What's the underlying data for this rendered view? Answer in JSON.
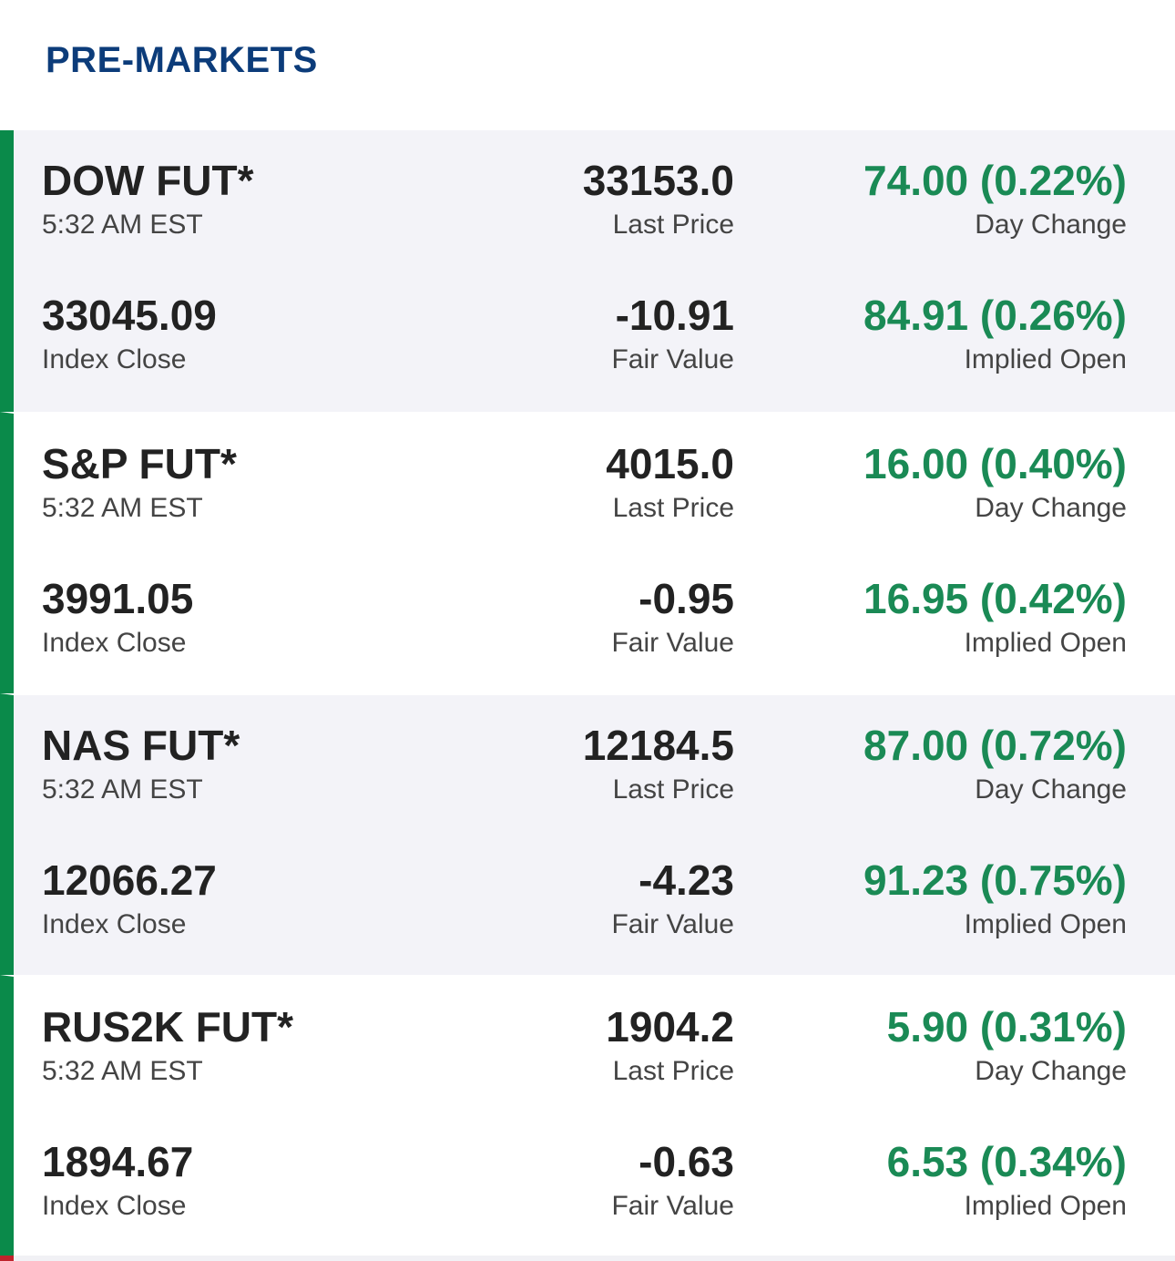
{
  "header": {
    "title": "PRE-MARKETS"
  },
  "colors": {
    "positive": "#1a8a55",
    "accent_bar": "#0a8a4a",
    "title": "#0c3c7a"
  },
  "rows": [
    {
      "name": "DOW FUT*",
      "time": "5:32 AM EST",
      "last_price": "33153.0",
      "last_price_label": "Last Price",
      "day_change": "74.00 (0.22%)",
      "day_change_label": "Day Change",
      "index_close": "33045.09",
      "index_close_label": "Index Close",
      "fair_value": "-10.91",
      "fair_value_label": "Fair Value",
      "implied_open": "84.91 (0.26%)",
      "implied_open_label": "Implied Open"
    },
    {
      "name": "S&P FUT*",
      "time": "5:32 AM EST",
      "last_price": "4015.0",
      "last_price_label": "Last Price",
      "day_change": "16.00 (0.40%)",
      "day_change_label": "Day Change",
      "index_close": "3991.05",
      "index_close_label": "Index Close",
      "fair_value": "-0.95",
      "fair_value_label": "Fair Value",
      "implied_open": "16.95 (0.42%)",
      "implied_open_label": "Implied Open"
    },
    {
      "name": "NAS FUT*",
      "time": "5:32 AM EST",
      "last_price": "12184.5",
      "last_price_label": "Last Price",
      "day_change": "87.00 (0.72%)",
      "day_change_label": "Day Change",
      "index_close": "12066.27",
      "index_close_label": "Index Close",
      "fair_value": "-4.23",
      "fair_value_label": "Fair Value",
      "implied_open": "91.23 (0.75%)",
      "implied_open_label": "Implied Open"
    },
    {
      "name": "RUS2K FUT*",
      "time": "5:32 AM EST",
      "last_price": "1904.2",
      "last_price_label": "Last Price",
      "day_change": "5.90 (0.31%)",
      "day_change_label": "Day Change",
      "index_close": "1894.67",
      "index_close_label": "Index Close",
      "fair_value": "-0.63",
      "fair_value_label": "Fair Value",
      "implied_open": "6.53 (0.34%)",
      "implied_open_label": "Implied Open"
    }
  ]
}
